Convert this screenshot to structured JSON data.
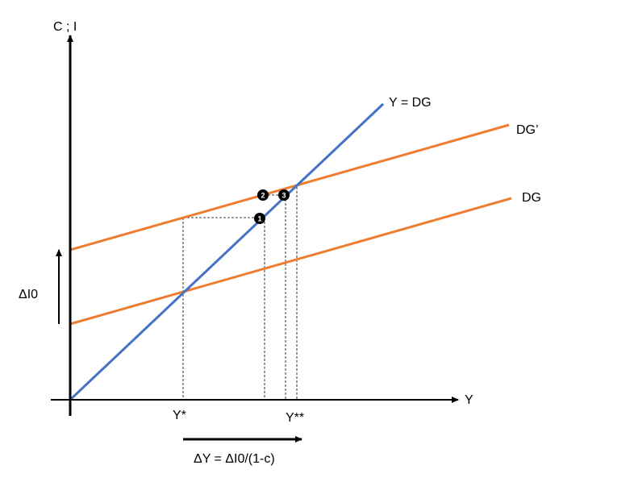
{
  "labels": {
    "y_axis": "C ; I",
    "x_axis": "Y",
    "line_45": "Y = DG",
    "dg_prime": "DG’",
    "dg": "DG",
    "delta_i0": "ΔI0",
    "y_star": "Y*",
    "y_star_star": "Y**",
    "multiplier": "ΔY = ΔI0/(1-c)"
  },
  "markers": [
    "1",
    "2",
    "3"
  ],
  "colors": {
    "line_45": "#4472c4",
    "demand_lines": "#ed7d31",
    "axes": "#000000",
    "guides": "#000000"
  }
}
